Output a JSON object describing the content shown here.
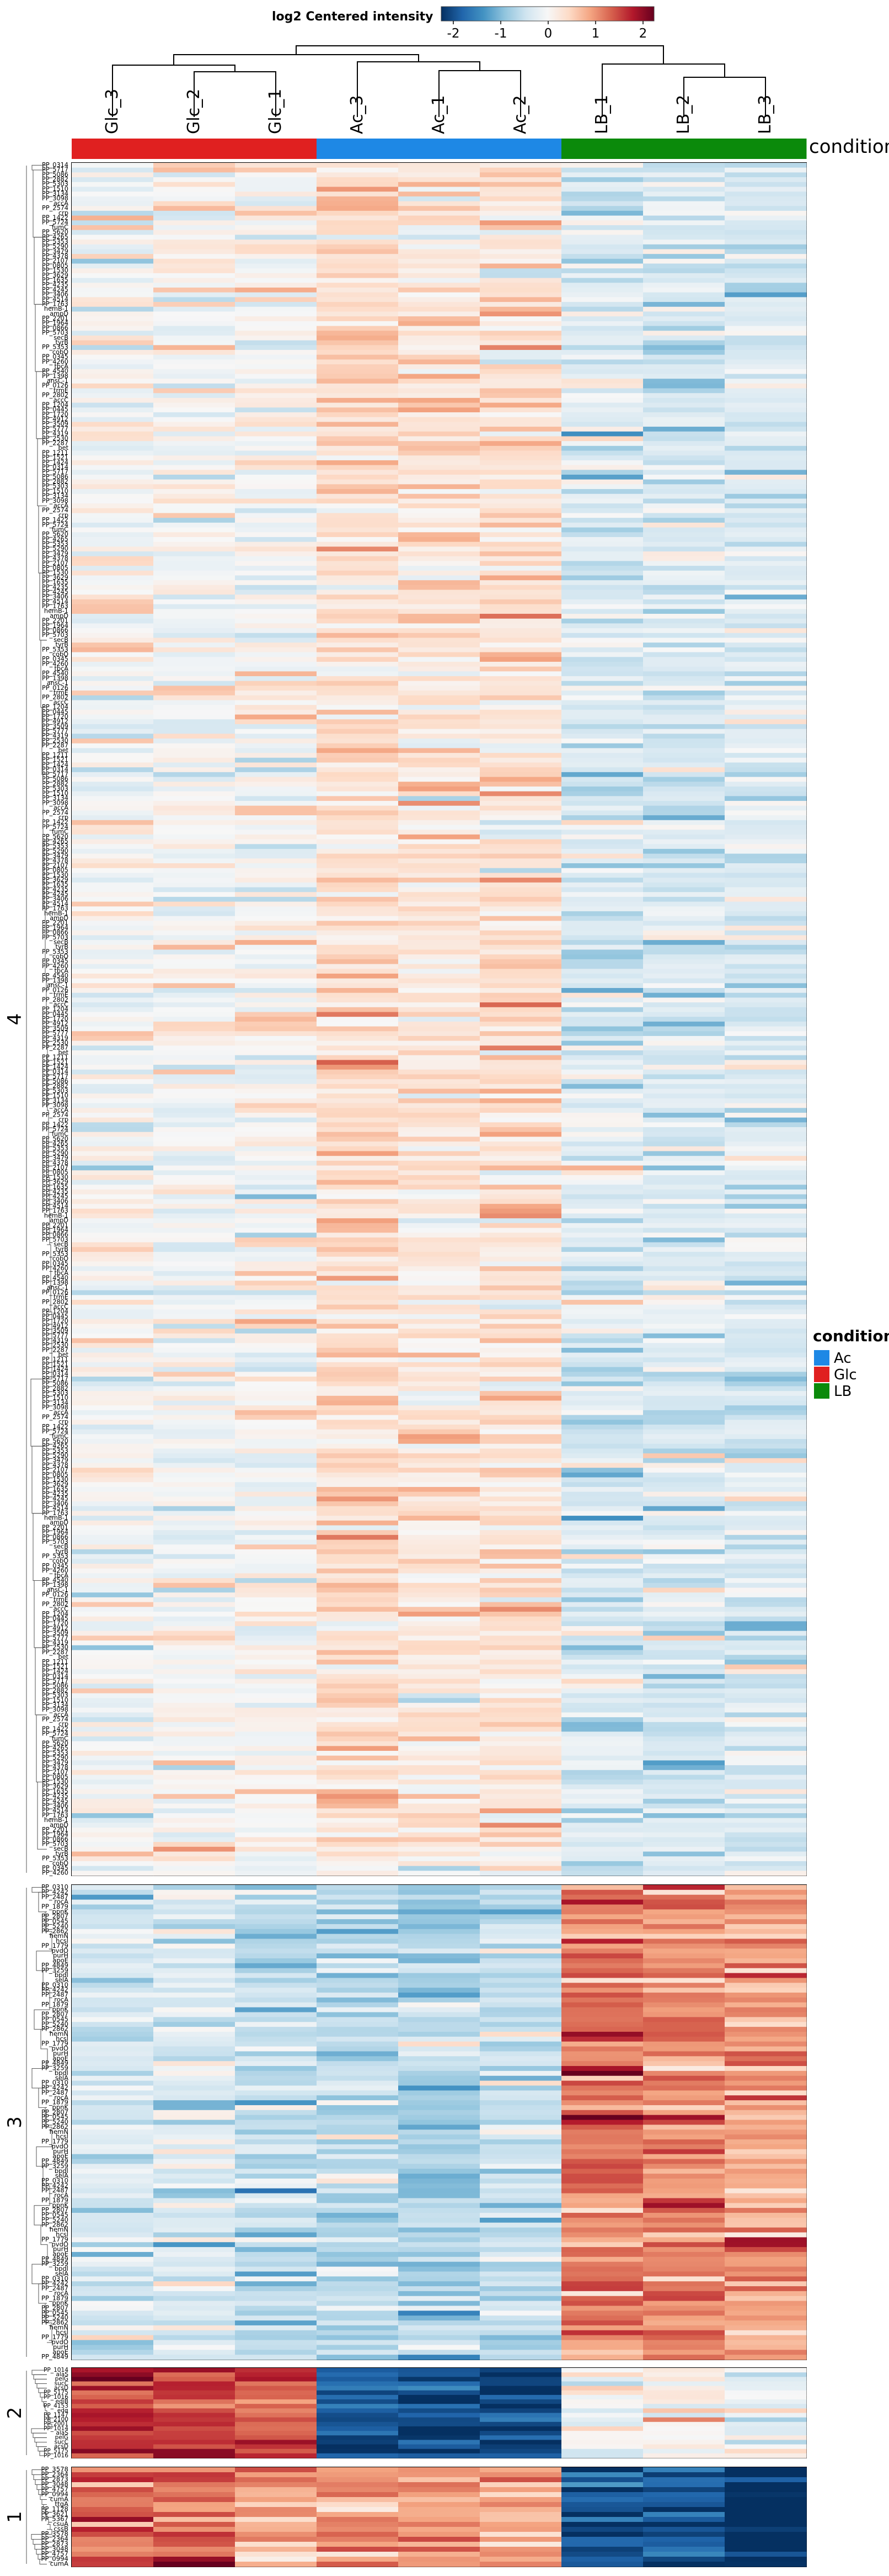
{
  "chart_data": {
    "type": "heatmap",
    "title": "log2 Centered intensity",
    "colorbar": {
      "ticks": [
        "-2",
        "-1",
        "0",
        "1",
        "2"
      ],
      "range": [
        -2,
        2
      ],
      "colors": [
        "#053061",
        "#2166ac",
        "#4393c3",
        "#92c5de",
        "#d1e5f0",
        "#f7f7f7",
        "#fddbc7",
        "#f4a582",
        "#d6604d",
        "#b2182b",
        "#67001f"
      ]
    },
    "columns": [
      "Glc_3",
      "Glc_2",
      "Glc_1",
      "Ac_3",
      "Ac_1",
      "Ac_2",
      "LB_1",
      "LB_2",
      "LB_3"
    ],
    "column_groups": [
      "Glc",
      "Glc",
      "Glc",
      "Ac",
      "Ac",
      "Ac",
      "LB",
      "LB",
      "LB"
    ],
    "condition_annotation_label": "condition",
    "legend": {
      "title": "condition",
      "items": [
        {
          "label": "Ac",
          "color": "#1e88e5"
        },
        {
          "label": "Glc",
          "color": "#e02020"
        },
        {
          "label": "LB",
          "color": "#0b8a0b"
        }
      ]
    },
    "row_clusters": [
      {
        "label": "4",
        "n_rows": 357
      },
      {
        "label": "3",
        "n_rows": 97
      },
      {
        "label": "2",
        "n_rows": 20
      },
      {
        "label": "1",
        "n_rows": 20
      }
    ],
    "row_labels_sample": {
      "4": [
        "PP_0314",
        "PP_5717",
        "PP_5086",
        "PP_2882",
        "PP_5303",
        "PP_1510",
        "PP_3134",
        "PP_3098",
        "accA",
        "PP_2574",
        "crp",
        "PP_1422",
        "PP_5724",
        "fumC",
        "PP_5620",
        "PP_4265",
        "PP_5353",
        "PP_5290",
        "PP_3479",
        "PP_4378",
        "PP_2107",
        "PP_0805",
        "PP_1530",
        "PP_3629",
        "PP_1635",
        "PP_4235",
        "PP_4245",
        "PP_3406",
        "PP_4514",
        "PP_1763",
        "hemB-1",
        "ampD",
        "PP_2201",
        "PP_1964",
        "PP_0866",
        "PP_5703",
        "secB",
        "tyrB",
        "PP_5353",
        "cobO",
        "PP_0345",
        "PP_4260",
        "tbcA",
        "PP_4540",
        "PP_1398",
        "ansC-1",
        "PP_0126",
        "trmE",
        "PP_2802",
        "accC",
        "PP_1204",
        "PP_0445",
        "PP_1720",
        "PP_4912",
        "PP_3509",
        "PP_5777",
        "PP_4319",
        "PP_2530",
        "PP_2287",
        "bet",
        "PP_1211",
        "PP_1521",
        "PP_1424"
      ],
      "3": [
        "PP_0310",
        "PP_4242",
        "PP_2487",
        "rocA",
        "PP_1879",
        "ppnK",
        "PP_2807",
        "PP_0545",
        "PP_5240",
        "PP_2862",
        "hemN",
        "hcsl",
        "PP_1779",
        "pvdO",
        "purH",
        "apoE",
        "PP_4849",
        "PP_3259",
        "bpdl",
        "selA"
      ],
      "2": [
        "PP_1014",
        "alaS",
        "pelG",
        "sucC",
        "acsD",
        "PP_5175",
        "PP_1016",
        "ediB",
        "PP_4153",
        "edα",
        "PP_1147",
        "PP_2100",
        "PP_2001"
      ],
      "1": [
        "PP_3578",
        "PP_2364",
        "PP_2873",
        "PP_3048",
        "PP_4757",
        "PP_0994",
        "cumA",
        "ttgA",
        "PP_1128",
        "PP_3621",
        "PP_5367",
        "csuA",
        "cssB"
      ]
    }
  }
}
